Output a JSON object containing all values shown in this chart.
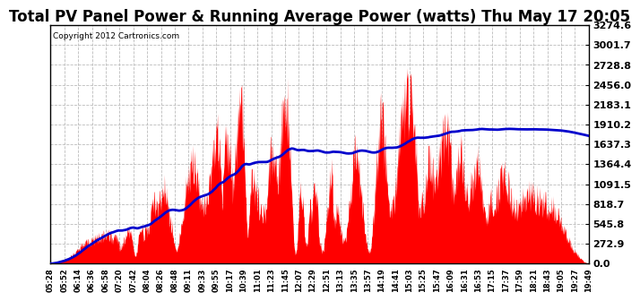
{
  "title": "Total PV Panel Power & Running Average Power (watts) Thu May 17 20:05",
  "copyright": "Copyright 2012 Cartronics.com",
  "yticks": [
    0.0,
    272.9,
    545.8,
    818.7,
    1091.5,
    1364.4,
    1637.3,
    1910.2,
    2183.1,
    2456.0,
    2728.8,
    3001.7,
    3274.6
  ],
  "ylim": [
    0,
    3274.6
  ],
  "bg_color": "#ffffff",
  "fill_color": "#ff0000",
  "avg_color": "#0000cc",
  "grid_color": "#bbbbbb",
  "title_fontsize": 12,
  "x_labels": [
    "05:28",
    "05:52",
    "06:14",
    "06:36",
    "06:58",
    "07:20",
    "07:42",
    "08:04",
    "08:26",
    "08:48",
    "09:11",
    "09:33",
    "09:55",
    "10:17",
    "10:39",
    "11:01",
    "11:23",
    "11:45",
    "12:07",
    "12:29",
    "12:51",
    "13:13",
    "13:35",
    "13:57",
    "14:19",
    "14:41",
    "15:03",
    "15:25",
    "15:47",
    "16:09",
    "16:31",
    "16:53",
    "17:15",
    "17:37",
    "17:59",
    "18:21",
    "18:43",
    "19:05",
    "19:27",
    "19:49"
  ]
}
